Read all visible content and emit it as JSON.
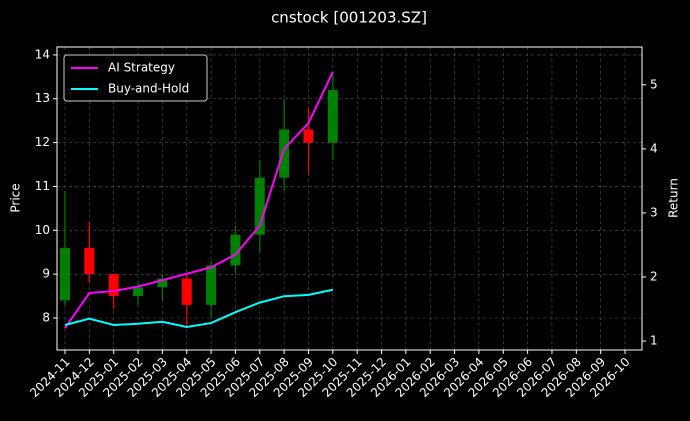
{
  "chart_data": {
    "type": "candlestick",
    "title": "cnstock [001203.SZ]",
    "ylabel": "Price",
    "y2label": "Return",
    "x": [
      "2024-11",
      "2024-12",
      "2025-01",
      "2025-02",
      "2025-03",
      "2025-04",
      "2025-05",
      "2025-06",
      "2025-07",
      "2025-08",
      "2025-09",
      "2025-10"
    ],
    "open": [
      8.4,
      9.6,
      9.0,
      8.5,
      8.7,
      8.9,
      8.3,
      9.2,
      9.9,
      11.2,
      12.3,
      12.0
    ],
    "high": [
      10.9,
      10.2,
      9.0,
      8.8,
      9.0,
      9.0,
      9.3,
      10.1,
      11.6,
      13.0,
      12.8,
      13.6
    ],
    "low": [
      8.3,
      8.8,
      8.2,
      8.3,
      8.4,
      7.8,
      8.0,
      9.0,
      9.5,
      10.9,
      11.3,
      11.6
    ],
    "close": [
      9.6,
      9.0,
      8.5,
      8.7,
      8.9,
      8.3,
      9.2,
      9.9,
      11.2,
      12.3,
      12.0,
      13.2
    ],
    "up_color": "#008000",
    "down_color": "#ff0000",
    "series": [
      {
        "name": "AI Strategy",
        "color": "#ff00ff",
        "axis": "y2",
        "values": [
          1.2,
          1.75,
          1.78,
          1.85,
          1.95,
          2.05,
          2.15,
          2.35,
          2.8,
          4.0,
          4.4,
          5.2
        ]
      },
      {
        "name": "Buy-and-Hold",
        "color": "#00ffff",
        "axis": "y2",
        "values": [
          1.25,
          1.35,
          1.25,
          1.27,
          1.3,
          1.22,
          1.28,
          1.45,
          1.6,
          1.7,
          1.72,
          1.8
        ]
      }
    ],
    "xlim": [
      "2024-11",
      "2026-10"
    ],
    "xticks": [
      "2024-11",
      "2024-12",
      "2025-01",
      "2025-02",
      "2025-03",
      "2025-04",
      "2025-05",
      "2025-06",
      "2025-07",
      "2025-08",
      "2025-09",
      "2025-10",
      "2025-11",
      "2025-12",
      "2026-01",
      "2026-02",
      "2026-03",
      "2026-04",
      "2026-05",
      "2026-06",
      "2026-07",
      "2026-08",
      "2026-09",
      "2026-10"
    ],
    "ylim": [
      7.27,
      14.18
    ],
    "yticks": [
      8,
      9,
      10,
      11,
      12,
      13,
      14
    ],
    "y2lim": [
      0.86,
      5.59
    ],
    "y2ticks": [
      1,
      2,
      3,
      4,
      5
    ],
    "grid": true,
    "legend": "upper left"
  }
}
